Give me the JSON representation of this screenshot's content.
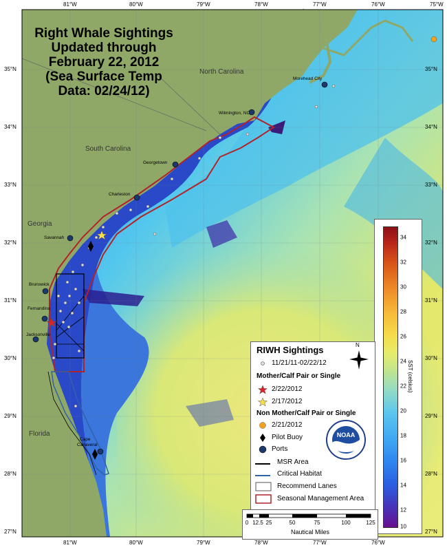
{
  "title": {
    "line1": "Right Whale Sightings",
    "line2": "Updated through",
    "line3": "February 22, 2012",
    "line4": "(Sea Surface Temp",
    "line5": "Data: 02/24/12)"
  },
  "longitudes": [
    "81°W",
    "80°W",
    "79°W",
    "78°W",
    "77°W",
    "76°W",
    "75°W"
  ],
  "latitudes": [
    "35°N",
    "34°N",
    "33°N",
    "32°N",
    "31°N",
    "30°N",
    "29°N",
    "28°N",
    "27°N"
  ],
  "states": {
    "nc": "North Carolina",
    "sc": "South Carolina",
    "ga": "Georgia",
    "fl": "Florida"
  },
  "ports": {
    "morehead": "Morehead City",
    "wilmington": "Wilmington, NC",
    "georgetown": "Georgetown",
    "charleston": "Charleston",
    "savannah": "Savannah",
    "brunswick": "Brunswick",
    "fernandina": "Fernandina",
    "jacksonville": "Jacksonville",
    "cape1": "Cape",
    "cape2": "Canaveral"
  },
  "legend": {
    "title": "RIWH Sightings",
    "sightings": "11/21/11-02/22/12",
    "mc_head": "Mother/Calf Pair or Single",
    "mc1": "2/22/2012",
    "mc2": "2/17/2012",
    "nmc_head": "Non Mother/Calf Pair or Single",
    "nmc1": "2/21/2012",
    "buoy": "Pilot Buoy",
    "ports": "Ports",
    "msr": "MSR Area",
    "critical": "Critical Habitat",
    "lanes": "Recommend Lanes",
    "sma": "Seasonal Management Area",
    "north": "N"
  },
  "scale": {
    "labels": [
      "0",
      "12.5",
      "25",
      "50",
      "75",
      "100",
      "125"
    ],
    "unit": "Nautical Miles"
  },
  "colorbar": {
    "title": "SST (celsius)",
    "min": 10,
    "max": 34,
    "ticks": [
      "34",
      "32",
      "30",
      "28",
      "26",
      "24",
      "22",
      "20",
      "18",
      "16",
      "14",
      "12",
      "10"
    ]
  },
  "colors": {
    "land": "#8fa868",
    "ocean_warm": "#e3e86a",
    "ocean_cool": "#29a9e8",
    "shelf": "#2a49c8",
    "sma": "#b0232a",
    "critical": "#2f62a8",
    "msr": "#000000",
    "port": "#1b3a6b"
  },
  "logo": {
    "text": "NOAA"
  }
}
